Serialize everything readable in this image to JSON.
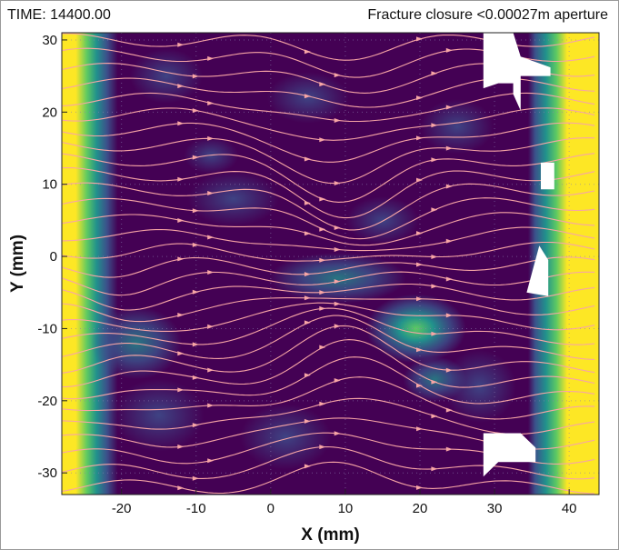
{
  "header": {
    "time_label": "TIME: 14400.00",
    "title": "Fracture closure <0.00027m aperture"
  },
  "chart_data": {
    "type": "contour",
    "xlabel": "X (mm)",
    "ylabel": "Y (mm)",
    "xlim": [
      -28,
      44
    ],
    "ylim": [
      -33,
      31
    ],
    "x_ticks": [
      -20,
      -10,
      0,
      10,
      20,
      30,
      40
    ],
    "y_ticks": [
      30,
      20,
      10,
      0,
      -10,
      -20,
      -30
    ],
    "grid": "dotted",
    "colormap": [
      "#440154",
      "#3b528b",
      "#21918c",
      "#5ec962",
      "#fde725"
    ],
    "high_value_zones": [
      {
        "x": [
          -28,
          -23
        ],
        "level": "high"
      },
      {
        "x": [
          38,
          44
        ],
        "level": "high"
      },
      {
        "center": [
          20,
          -10
        ],
        "level": "medium"
      },
      {
        "center": [
          -20,
          -12
        ],
        "level": "medium"
      },
      {
        "center": [
          10,
          -3
        ],
        "level": "low-medium"
      }
    ],
    "closed_fracture_regions": [
      {
        "polygon": [
          [
            28.5,
            31
          ],
          [
            32.5,
            31
          ],
          [
            33.5,
            27.7
          ],
          [
            37.5,
            26.2
          ],
          [
            37.5,
            25
          ],
          [
            33.5,
            25
          ],
          [
            33.5,
            20.2
          ],
          [
            32.5,
            22.5
          ],
          [
            32.5,
            24
          ],
          [
            30.5,
            24
          ],
          [
            28.5,
            23.3
          ]
        ]
      },
      {
        "polygon": [
          [
            36.2,
            13
          ],
          [
            38,
            13
          ],
          [
            38,
            9.3
          ],
          [
            36.2,
            9.3
          ]
        ]
      },
      {
        "polygon": [
          [
            36,
            1.5
          ],
          [
            37.2,
            -0.5
          ],
          [
            37.2,
            -5.5
          ],
          [
            34.3,
            -5
          ]
        ]
      },
      {
        "polygon": [
          [
            28.5,
            -24.5
          ],
          [
            33.5,
            -24.5
          ],
          [
            35.5,
            -26.5
          ],
          [
            35.5,
            -28.5
          ],
          [
            30.5,
            -28.5
          ],
          [
            28.5,
            -30.5
          ]
        ]
      }
    ],
    "streamlines": {
      "color": "#f7a5a5",
      "count": 31,
      "direction": "left-to-right",
      "y_start": [
        -32,
        30
      ],
      "convergence_center": [
        10,
        -3
      ]
    }
  }
}
